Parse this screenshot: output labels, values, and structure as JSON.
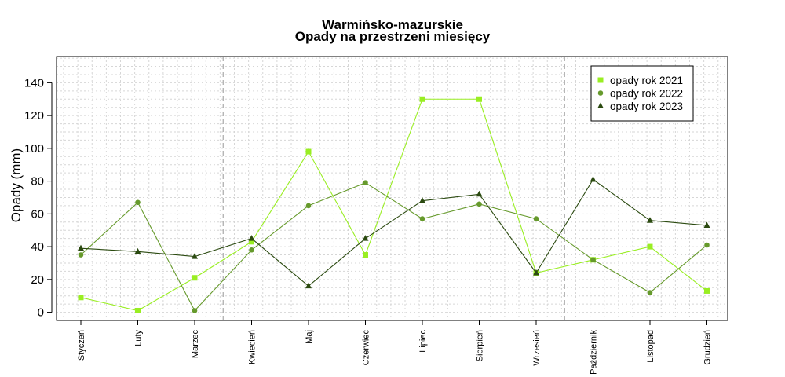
{
  "chart_data": {
    "type": "line",
    "title": "Warmińsko-mazurskie",
    "subtitle": "Opady na przestrzeni miesięcy",
    "xlabel": "",
    "ylabel": "Opady (mm)",
    "ylim": [
      -5,
      156
    ],
    "yticks": [
      0,
      20,
      40,
      60,
      80,
      100,
      120,
      140
    ],
    "grid": true,
    "legend_position": "top-right",
    "categories": [
      "Styczeń",
      "Luty",
      "Marzec",
      "Kwiecień",
      "Maj",
      "Czerwiec",
      "Lipiec",
      "Sierpień",
      "Wrzesień",
      "Październik",
      "Listopad",
      "Grudzień"
    ],
    "season_dividers_after": [
      "Marzec",
      "Wrzesień"
    ],
    "series": [
      {
        "name": "opady rok 2021",
        "marker": "square",
        "color": "#99ee22",
        "values": [
          9,
          1,
          21,
          43,
          98,
          35,
          130,
          130,
          24,
          32,
          40,
          13
        ]
      },
      {
        "name": "opady rok 2022",
        "marker": "circle",
        "color": "#669a2c",
        "values": [
          35,
          67,
          1,
          38,
          65,
          79,
          57,
          66,
          57,
          32,
          12,
          41
        ]
      },
      {
        "name": "opady rok 2023",
        "marker": "triangle",
        "color": "#2b4a10",
        "values": [
          39,
          37,
          34,
          45,
          16,
          45,
          68,
          72,
          24,
          81,
          56,
          53
        ]
      }
    ]
  }
}
